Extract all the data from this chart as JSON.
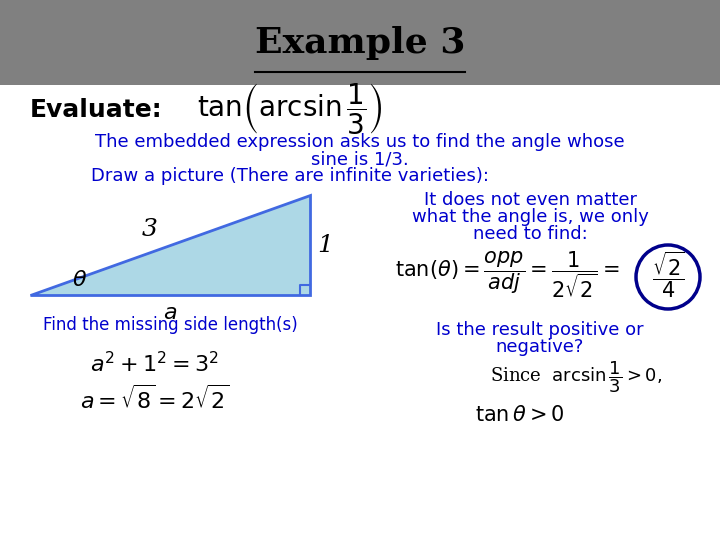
{
  "title": "Example 3",
  "title_underline": true,
  "background_header": "#808080",
  "background_body": "#ffffff",
  "evaluate_label": "Evaluate:",
  "blue_color": "#0000CD",
  "dark_blue": "#00008B",
  "black": "#000000",
  "triangle_fill": "#ADD8E6",
  "triangle_edge": "#4169E1",
  "text_lines": [
    "The embedded expression asks us to find the angle whose",
    "sine is 1/3.",
    "Draw a picture (There are infinite varieties):"
  ],
  "find_side_text": "Find the missing side length(s)",
  "it_does_text1": "It does not even matter",
  "it_does_text2": "what the angle is, we only",
  "it_does_text3": "need to find:",
  "positive_text1": "Is the result positive or",
  "positive_text2": "negative?",
  "since_text": "Since  arcsin",
  "tan_theta_gt": "tan",
  "circle_color": "#00008B"
}
